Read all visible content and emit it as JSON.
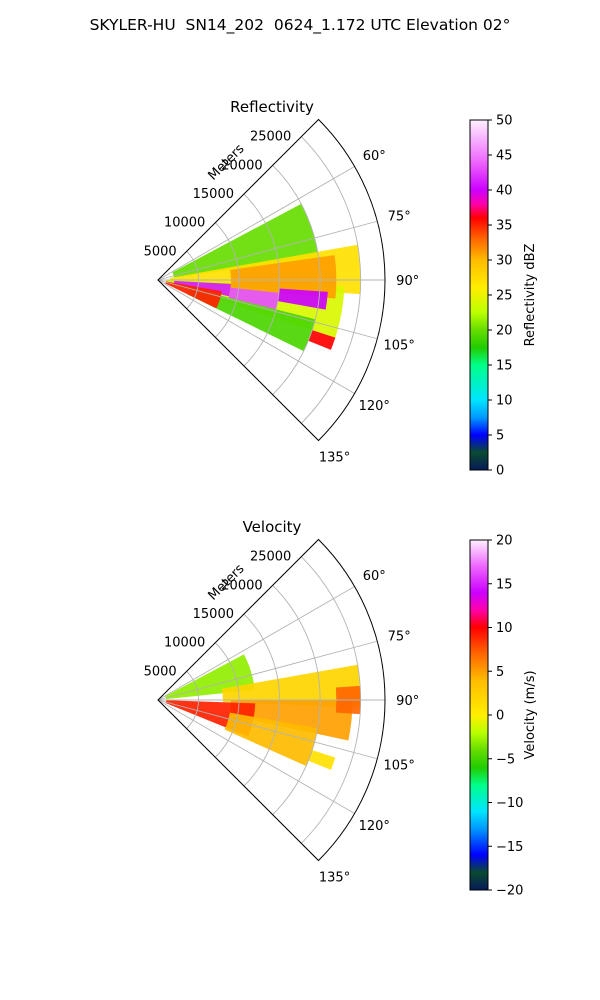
{
  "figure": {
    "title": "SKYLER-HU  SN14_202  0624_1.172 UTC Elevation 02°"
  },
  "chart_data": [
    {
      "type": "heatmap",
      "subtype": "polar-sector",
      "title": "Reflectivity",
      "radial_axis": {
        "label": "Meters",
        "range": [
          0,
          28000
        ],
        "ticks": [
          5000,
          10000,
          15000,
          20000,
          25000
        ]
      },
      "angular_axis": {
        "range_deg": [
          45,
          135
        ],
        "ticks_deg": [
          60,
          75,
          90,
          105,
          120,
          135
        ],
        "tick_labels": [
          "60°",
          "75°",
          "90°",
          "105°",
          "120°",
          "135°"
        ]
      },
      "grid": true,
      "colorbar": {
        "label": "Reflectivity dBZ",
        "range": [
          0,
          50
        ],
        "ticks": [
          0,
          5,
          10,
          15,
          20,
          25,
          30,
          35,
          40,
          45,
          50
        ],
        "tick_labels": [
          "0",
          "5",
          "10",
          "15",
          "20",
          "25",
          "30",
          "35",
          "40",
          "45",
          "50"
        ],
        "stops": [
          {
            "v": 0,
            "c": "#061a5a"
          },
          {
            "v": 2.5,
            "c": "#0a4a30"
          },
          {
            "v": 5,
            "c": "#0000ff"
          },
          {
            "v": 7.5,
            "c": "#0099ff"
          },
          {
            "v": 10,
            "c": "#00e5ff"
          },
          {
            "v": 15,
            "c": "#00ff88"
          },
          {
            "v": 17.5,
            "c": "#22cc00"
          },
          {
            "v": 20,
            "c": "#66dd00"
          },
          {
            "v": 22.5,
            "c": "#bbff00"
          },
          {
            "v": 26,
            "c": "#ffee00"
          },
          {
            "v": 30,
            "c": "#ffbb00"
          },
          {
            "v": 33,
            "c": "#ff6600"
          },
          {
            "v": 36,
            "c": "#ff0000"
          },
          {
            "v": 38,
            "c": "#ff00aa"
          },
          {
            "v": 40,
            "c": "#cc00ff"
          },
          {
            "v": 44,
            "c": "#ee66ff"
          },
          {
            "v": 50,
            "c": "#fff0ff"
          }
        ]
      },
      "regions": [
        {
          "az": [
            62,
            82
          ],
          "r": [
            2000,
            20000
          ],
          "value": 20
        },
        {
          "az": [
            80,
            94
          ],
          "r": [
            1500,
            25000
          ],
          "value": 27
        },
        {
          "az": [
            92,
            108
          ],
          "r": [
            1000,
            23000
          ],
          "value": 24
        },
        {
          "az": [
            104,
            116
          ],
          "r": [
            4000,
            20000
          ],
          "value": 19
        },
        {
          "az": [
            82,
            96
          ],
          "r": [
            9000,
            22000
          ],
          "value": 31
        },
        {
          "az": [
            93,
            103
          ],
          "r": [
            2000,
            9000
          ],
          "value": 41
        },
        {
          "az": [
            96,
            104
          ],
          "r": [
            9000,
            15000
          ],
          "value": 43
        },
        {
          "az": [
            94,
            100
          ],
          "r": [
            15000,
            21000
          ],
          "value": 40
        },
        {
          "az": [
            108,
            112
          ],
          "r": [
            20000,
            23000
          ],
          "value": 36
        },
        {
          "az": [
            100,
            116
          ],
          "r": [
            1000,
            8000
          ],
          "value": 35
        }
      ]
    },
    {
      "type": "heatmap",
      "subtype": "polar-sector",
      "title": "Velocity",
      "radial_axis": {
        "label": "Meters",
        "range": [
          0,
          28000
        ],
        "ticks": [
          5000,
          10000,
          15000,
          20000,
          25000
        ]
      },
      "angular_axis": {
        "range_deg": [
          45,
          135
        ],
        "ticks_deg": [
          60,
          75,
          90,
          105,
          120,
          135
        ],
        "tick_labels": [
          "60°",
          "75°",
          "90°",
          "105°",
          "120°",
          "135°"
        ]
      },
      "grid": true,
      "colorbar": {
        "label": "Velocity (m/s)",
        "range": [
          -20,
          20
        ],
        "ticks": [
          -20,
          -15,
          -10,
          -5,
          0,
          5,
          10,
          15,
          20
        ],
        "tick_labels": [
          "−20",
          "−15",
          "−10",
          "−5",
          "0",
          "5",
          "10",
          "15",
          "20"
        ],
        "stops": [
          {
            "v": -20,
            "c": "#061a5a"
          },
          {
            "v": -18,
            "c": "#0a4a30"
          },
          {
            "v": -16,
            "c": "#0000ff"
          },
          {
            "v": -13,
            "c": "#0099ff"
          },
          {
            "v": -11,
            "c": "#00e5ff"
          },
          {
            "v": -8,
            "c": "#00ff88"
          },
          {
            "v": -6,
            "c": "#22cc00"
          },
          {
            "v": -4,
            "c": "#66dd00"
          },
          {
            "v": -2,
            "c": "#bbff00"
          },
          {
            "v": 0,
            "c": "#ffee00"
          },
          {
            "v": 4,
            "c": "#ffbb00"
          },
          {
            "v": 7,
            "c": "#ff6600"
          },
          {
            "v": 10,
            "c": "#ff0000"
          },
          {
            "v": 12,
            "c": "#ff00aa"
          },
          {
            "v": 14,
            "c": "#cc00ff"
          },
          {
            "v": 17,
            "c": "#ee66ff"
          },
          {
            "v": 20,
            "c": "#fff0ff"
          }
        ]
      },
      "regions": [
        {
          "az": [
            62,
            84
          ],
          "r": [
            1000,
            12000
          ],
          "value": -3
        },
        {
          "az": [
            80,
            92
          ],
          "r": [
            8000,
            25000
          ],
          "value": 2
        },
        {
          "az": [
            90,
            102
          ],
          "r": [
            9000,
            24000
          ],
          "value": 5
        },
        {
          "az": [
            92,
            112
          ],
          "r": [
            1000,
            12000
          ],
          "value": 9
        },
        {
          "az": [
            100,
            114
          ],
          "r": [
            9000,
            20000
          ],
          "value": 4
        },
        {
          "az": [
            108,
            112
          ],
          "r": [
            20000,
            23000
          ],
          "value": 1
        },
        {
          "az": [
            86,
            94
          ],
          "r": [
            22000,
            25000
          ],
          "value": 7
        }
      ]
    }
  ]
}
